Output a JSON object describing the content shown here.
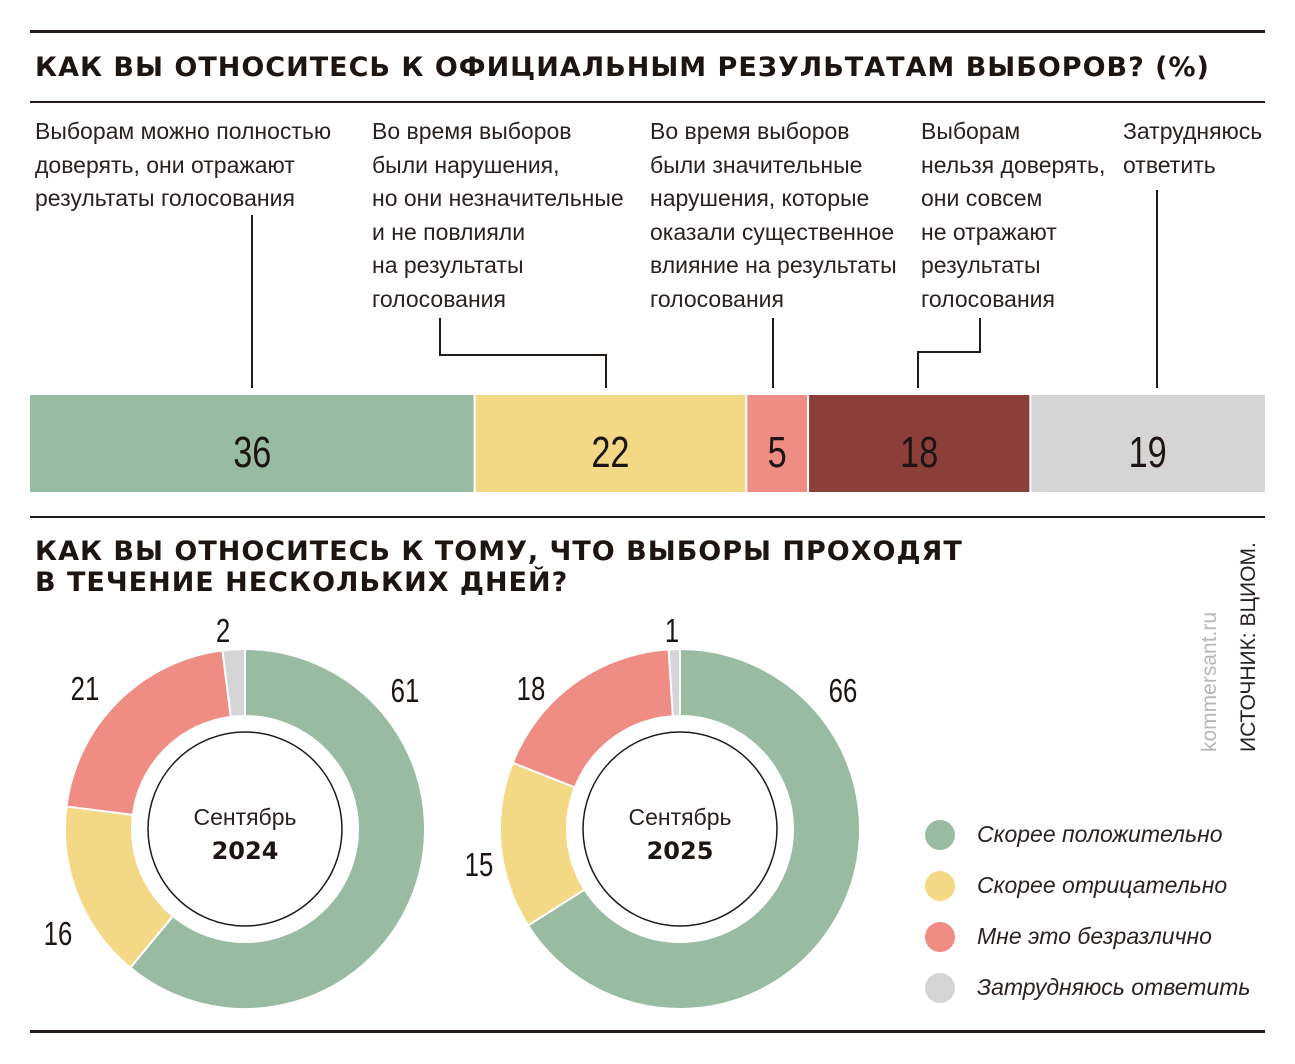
{
  "colors": {
    "green": "#98bba1",
    "yellow": "#f3d985",
    "pink": "#ef8c83",
    "brown": "#8c3f38",
    "gray": "#d6d5d5",
    "text": "#221a16"
  },
  "section1": {
    "title": "КАК ВЫ ОТНОСИТЕСЬ К ОФИЦИАЛЬНЫМ РЕЗУЛЬТАТАМ ВЫБОРОВ? (%)"
  },
  "section2": {
    "title": "КАК ВЫ ОТНОСИТЕСЬ К ТОМУ, ЧТО ВЫБОРЫ ПРОХОДЯТ\nВ ТЕЧЕНИЕ НЕСКОЛЬКИХ ДНЕЙ?",
    "donut1": {
      "label": "Сентябрь",
      "year": "2024"
    },
    "donut2": {
      "label": "Сентябрь",
      "year": "2025"
    }
  },
  "side": {
    "site": "kommersant.ru",
    "source": "ИСТОЧНИК: ВЦИОМ."
  },
  "chart_data": [
    {
      "type": "bar",
      "stacked": true,
      "orientation": "horizontal",
      "title": "КАК ВЫ ОТНОСИТЕСЬ К ОФИЦИАЛЬНЫМ РЕЗУЛЬТАТАМ ВЫБОРОВ? (%)",
      "categories": [
        "Выборам можно полностью\nдоверять, они отражают\nрезультаты голосования",
        "Во время выборов\nбыли нарушения,\nно они незначительные\nи не повлияли\nна результаты\nголосования",
        "Во время выборов\nбыли значительные\nнарушения, которые\nоказали существенное\nвлияние на результаты\nголосования",
        "Выборам\nнельзя доверять,\nони совсем\nне отражают\nрезультаты\nголосования",
        "Затрудняюсь\nответить"
      ],
      "values": [
        36,
        22,
        5,
        18,
        19
      ],
      "value_labels": [
        "36",
        "22",
        "5",
        "18",
        "19"
      ],
      "colors": [
        "#98bba1",
        "#f3d985",
        "#ef8c83",
        "#8c3f38",
        "#d6d5d5"
      ]
    },
    {
      "type": "pie",
      "subtype": "donut",
      "center_label": "Сентябрь",
      "center_year": "2024",
      "categories": [
        "Скорее положительно",
        "Скорее отрицательно",
        "Мне это безразлично",
        "Затрудняюсь ответить"
      ],
      "values": [
        61,
        16,
        21,
        2
      ],
      "value_labels": [
        "61",
        "16",
        "21",
        "2"
      ],
      "colors": [
        "#98bba1",
        "#f3d985",
        "#ef8c83",
        "#d6d5d5"
      ]
    },
    {
      "type": "pie",
      "subtype": "donut",
      "center_label": "Сентябрь",
      "center_year": "2025",
      "categories": [
        "Скорее положительно",
        "Скорее отрицательно",
        "Мне это безразлично",
        "Затрудняюсь ответить"
      ],
      "values": [
        66,
        15,
        18,
        1
      ],
      "value_labels": [
        "66",
        "15",
        "18",
        "1"
      ],
      "colors": [
        "#98bba1",
        "#f3d985",
        "#ef8c83",
        "#d6d5d5"
      ]
    }
  ],
  "legend": [
    {
      "label": "Скорее положительно",
      "color": "#98bba1"
    },
    {
      "label": "Скорее отрицательно",
      "color": "#f3d985"
    },
    {
      "label": "Мне это безразлично",
      "color": "#ef8c83"
    },
    {
      "label": "Затрудняюсь ответить",
      "color": "#d6d5d5"
    }
  ]
}
